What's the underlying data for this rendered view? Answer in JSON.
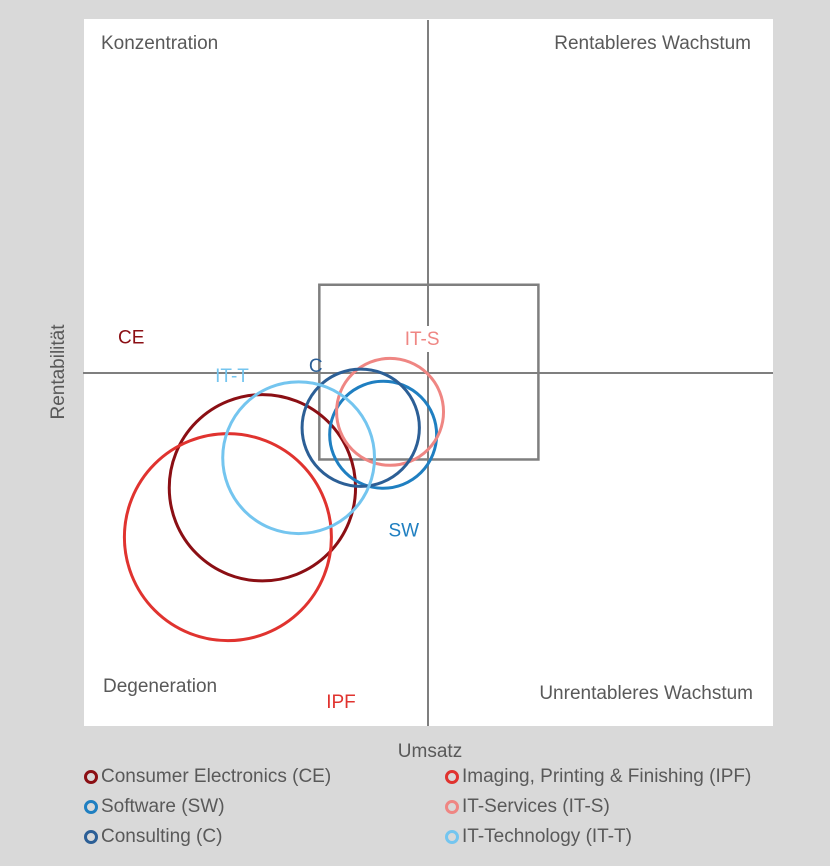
{
  "chart_data": {
    "type": "bubble-matrix",
    "xlabel": "Umsatz",
    "ylabel": "Rentabilität",
    "xlim": [
      -10,
      10
    ],
    "ylim": [
      -10,
      10
    ],
    "quadrants": {
      "top_left": "Konzentration",
      "top_right": "Rentableres Wachstum",
      "bottom_left": "Degeneration",
      "bottom_right": "Unrentableres Wachstum"
    },
    "highlight_box": {
      "x": [
        -3.15,
        3.2
      ],
      "y": [
        -2.45,
        2.5
      ]
    },
    "series": [
      {
        "name": "Consumer Electronics (CE)",
        "label": "CE",
        "x": -4.8,
        "y": -3.25,
        "r": 2.7,
        "color": "#8b0f14"
      },
      {
        "name": "Imaging, Printing & Finishing (IPF)",
        "label": "IPF",
        "x": -5.8,
        "y": -4.65,
        "r": 3.0,
        "color": "#e0332f"
      },
      {
        "name": "Software (SW)",
        "label": "SW",
        "x": -1.3,
        "y": -1.75,
        "r": 1.55,
        "color": "#1f7fc1"
      },
      {
        "name": "IT-Services (IT-S)",
        "label": "IT-S",
        "x": -1.1,
        "y": -1.1,
        "r": 1.55,
        "color": "#ef8683"
      },
      {
        "name": "Consulting (C)",
        "label": "C",
        "x": -1.95,
        "y": -1.55,
        "r": 1.7,
        "color": "#2c5f96"
      },
      {
        "name": "IT-Technology (IT-T)",
        "label": "IT-T",
        "x": -3.75,
        "y": -2.4,
        "r": 2.2,
        "color": "#74c5ef"
      }
    ]
  }
}
